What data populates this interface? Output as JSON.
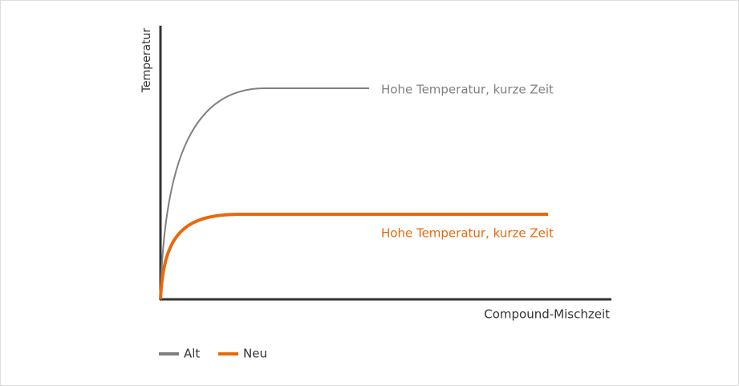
{
  "chart_data": {
    "type": "line",
    "x_label": "Compound-Mischzeit",
    "y_label": "Temperatur",
    "series": [
      {
        "name": "Alt",
        "color": "#808080",
        "label": "Hohe Temperatur, kurze Zeit"
      },
      {
        "name": "Neu",
        "color": "#e8690b",
        "label": "Hohe Temperatur, kurze Zeit"
      }
    ]
  }
}
